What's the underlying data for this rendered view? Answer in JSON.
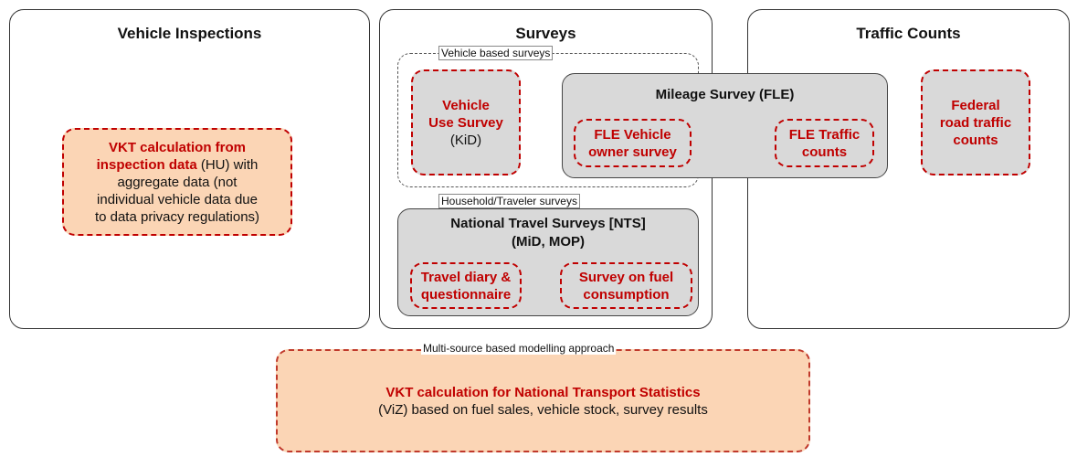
{
  "panels": {
    "inspections": {
      "title": "Vehicle Inspections",
      "box": {
        "lines": [
          [
            {
              "bold": "VKT calculation  from"
            }
          ],
          [
            {
              "bold": "inspection data"
            },
            {
              "plain": " (HU) with"
            }
          ],
          [
            {
              "plain": "aggregate data (not"
            }
          ],
          [
            {
              "plain": "individual vehicle data due"
            }
          ],
          [
            {
              "plain": "to data privacy regulations)"
            }
          ]
        ]
      }
    },
    "surveys": {
      "title": "Surveys",
      "vehicle_group": {
        "label": "Vehicle based surveys",
        "use_survey": {
          "lines": [
            {
              "bold": "Vehicle"
            },
            {
              "bold": "Use Survey"
            },
            {
              "plain": "(KiD)"
            }
          ]
        }
      },
      "household_group": {
        "label": "Household/Traveler surveys",
        "nts": {
          "title": [
            "National Travel Surveys [NTS]",
            "(MiD, MOP)"
          ],
          "items": [
            [
              "Travel diary &",
              "questionnaire"
            ],
            [
              "Survey on fuel",
              "consumption"
            ]
          ]
        }
      }
    },
    "traffic": {
      "title": "Traffic Counts",
      "federal": {
        "lines": [
          "Federal",
          "road traffic",
          "counts"
        ]
      }
    }
  },
  "mileage": {
    "title": "Mileage Survey (FLE)",
    "items": [
      [
        "FLE Vehicle",
        "owner survey"
      ],
      [
        "FLE Traffic",
        "counts"
      ]
    ]
  },
  "modelling": {
    "label": "Multi-source based modelling approach",
    "lines": [
      "VKT calculation for National Transport Statistics",
      "(ViZ) based on fuel sales, vehicle stock, survey results"
    ]
  }
}
